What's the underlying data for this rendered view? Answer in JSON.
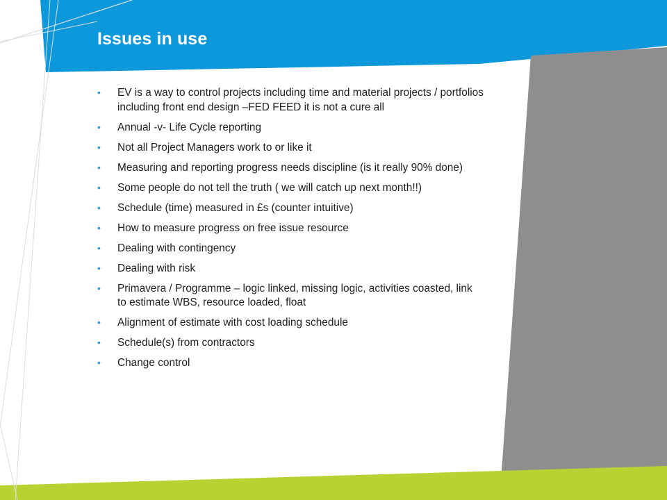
{
  "title": "Issues in use",
  "colors": {
    "blue": "#0c98db",
    "gray": "#8e8e8e",
    "green": "#b7d333",
    "bullet": "#2f9dd7"
  },
  "bullets": [
    "EV is a way to control projects including time  and material projects / portfolios including front end design –FED FEED it is not a cure all",
    "Annual -v- Life Cycle reporting",
    "Not all Project Managers work to or like it",
    "Measuring and reporting progress needs discipline (is it  really 90% done)",
    "Some people do not tell the truth ( we will catch up next month!!)",
    "Schedule (time) measured in £s (counter intuitive)",
    "How to measure progress on free issue resource",
    "Dealing with contingency",
    "Dealing with risk",
    "Primavera / Programme  – logic linked, missing logic, activities coasted, link to estimate WBS, resource loaded, float",
    "Alignment of estimate with cost loading schedule",
    "Schedule(s) from contractors",
    "Change control"
  ]
}
